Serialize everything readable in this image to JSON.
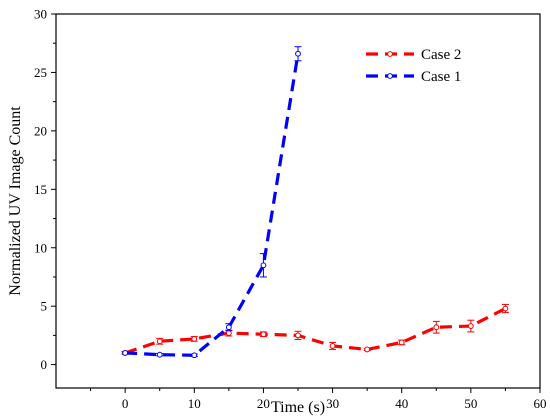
{
  "chart_data": {
    "type": "line",
    "title": "",
    "xlabel": "Time (s)",
    "ylabel": "Normalized UV Image Count",
    "xlim": [
      -10,
      60
    ],
    "ylim": [
      -2,
      30
    ],
    "xticks": [
      0,
      10,
      20,
      30,
      40,
      50,
      60
    ],
    "yticks": [
      0,
      5,
      10,
      15,
      20,
      25,
      30
    ],
    "grid": false,
    "legend": "top-right",
    "series": [
      {
        "name": "Case 2",
        "color": "#ff0000",
        "marker": "circle",
        "line_style": "dashed",
        "x": [
          0,
          5,
          10,
          15,
          20,
          25,
          30,
          35,
          40,
          45,
          50,
          55
        ],
        "y": [
          1.0,
          2.0,
          2.2,
          2.7,
          2.6,
          2.5,
          1.6,
          1.3,
          1.9,
          3.2,
          3.3,
          4.8
        ],
        "error": [
          0.1,
          0.25,
          0.2,
          0.25,
          0.2,
          0.35,
          0.3,
          0.1,
          0.2,
          0.5,
          0.5,
          0.35
        ]
      },
      {
        "name": "Case 1",
        "color": "#0000ff",
        "marker": "circle",
        "line_style": "dashed",
        "x": [
          0,
          5,
          10,
          15,
          20,
          25
        ],
        "y": [
          1.0,
          0.85,
          0.8,
          3.2,
          8.5,
          26.6
        ],
        "error": [
          0.1,
          0.1,
          0.1,
          0.3,
          1.0,
          0.6
        ]
      }
    ]
  }
}
